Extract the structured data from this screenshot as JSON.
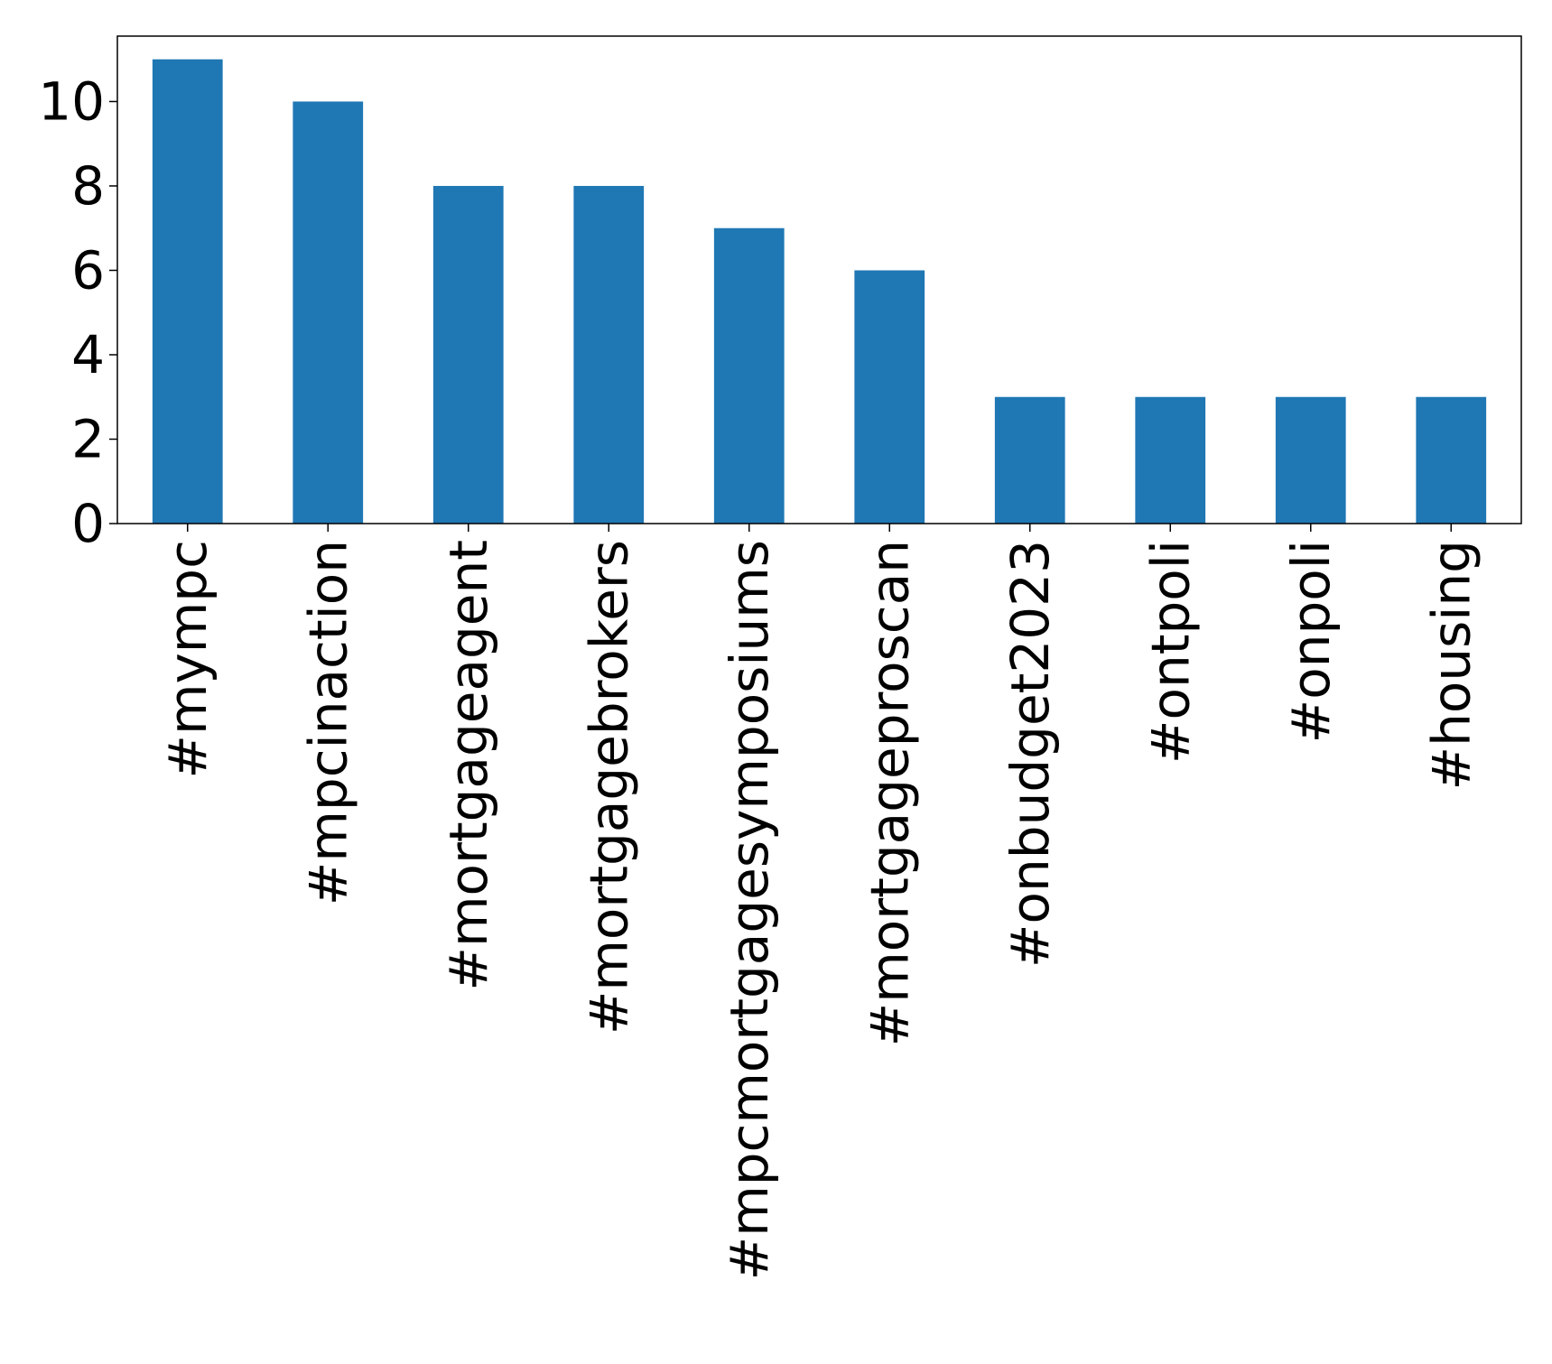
{
  "chart_data": {
    "type": "bar",
    "categories": [
      "#mympc",
      "#mpcinaction",
      "#mortgageagent",
      "#mortgagebrokers",
      "#mpcmortgagesymposiums",
      "#mortgageproscan",
      "#onbudget2023",
      "#ontpoli",
      "#onpoli",
      "#housing"
    ],
    "values": [
      11,
      10,
      8,
      8,
      7,
      6,
      3,
      3,
      3,
      3
    ],
    "title": "",
    "xlabel": "",
    "ylabel": "",
    "ylim": [
      0,
      11.55
    ],
    "yticks": [
      0,
      2,
      4,
      6,
      8,
      10
    ],
    "grid": false,
    "bar_color": "#1f77b4"
  }
}
